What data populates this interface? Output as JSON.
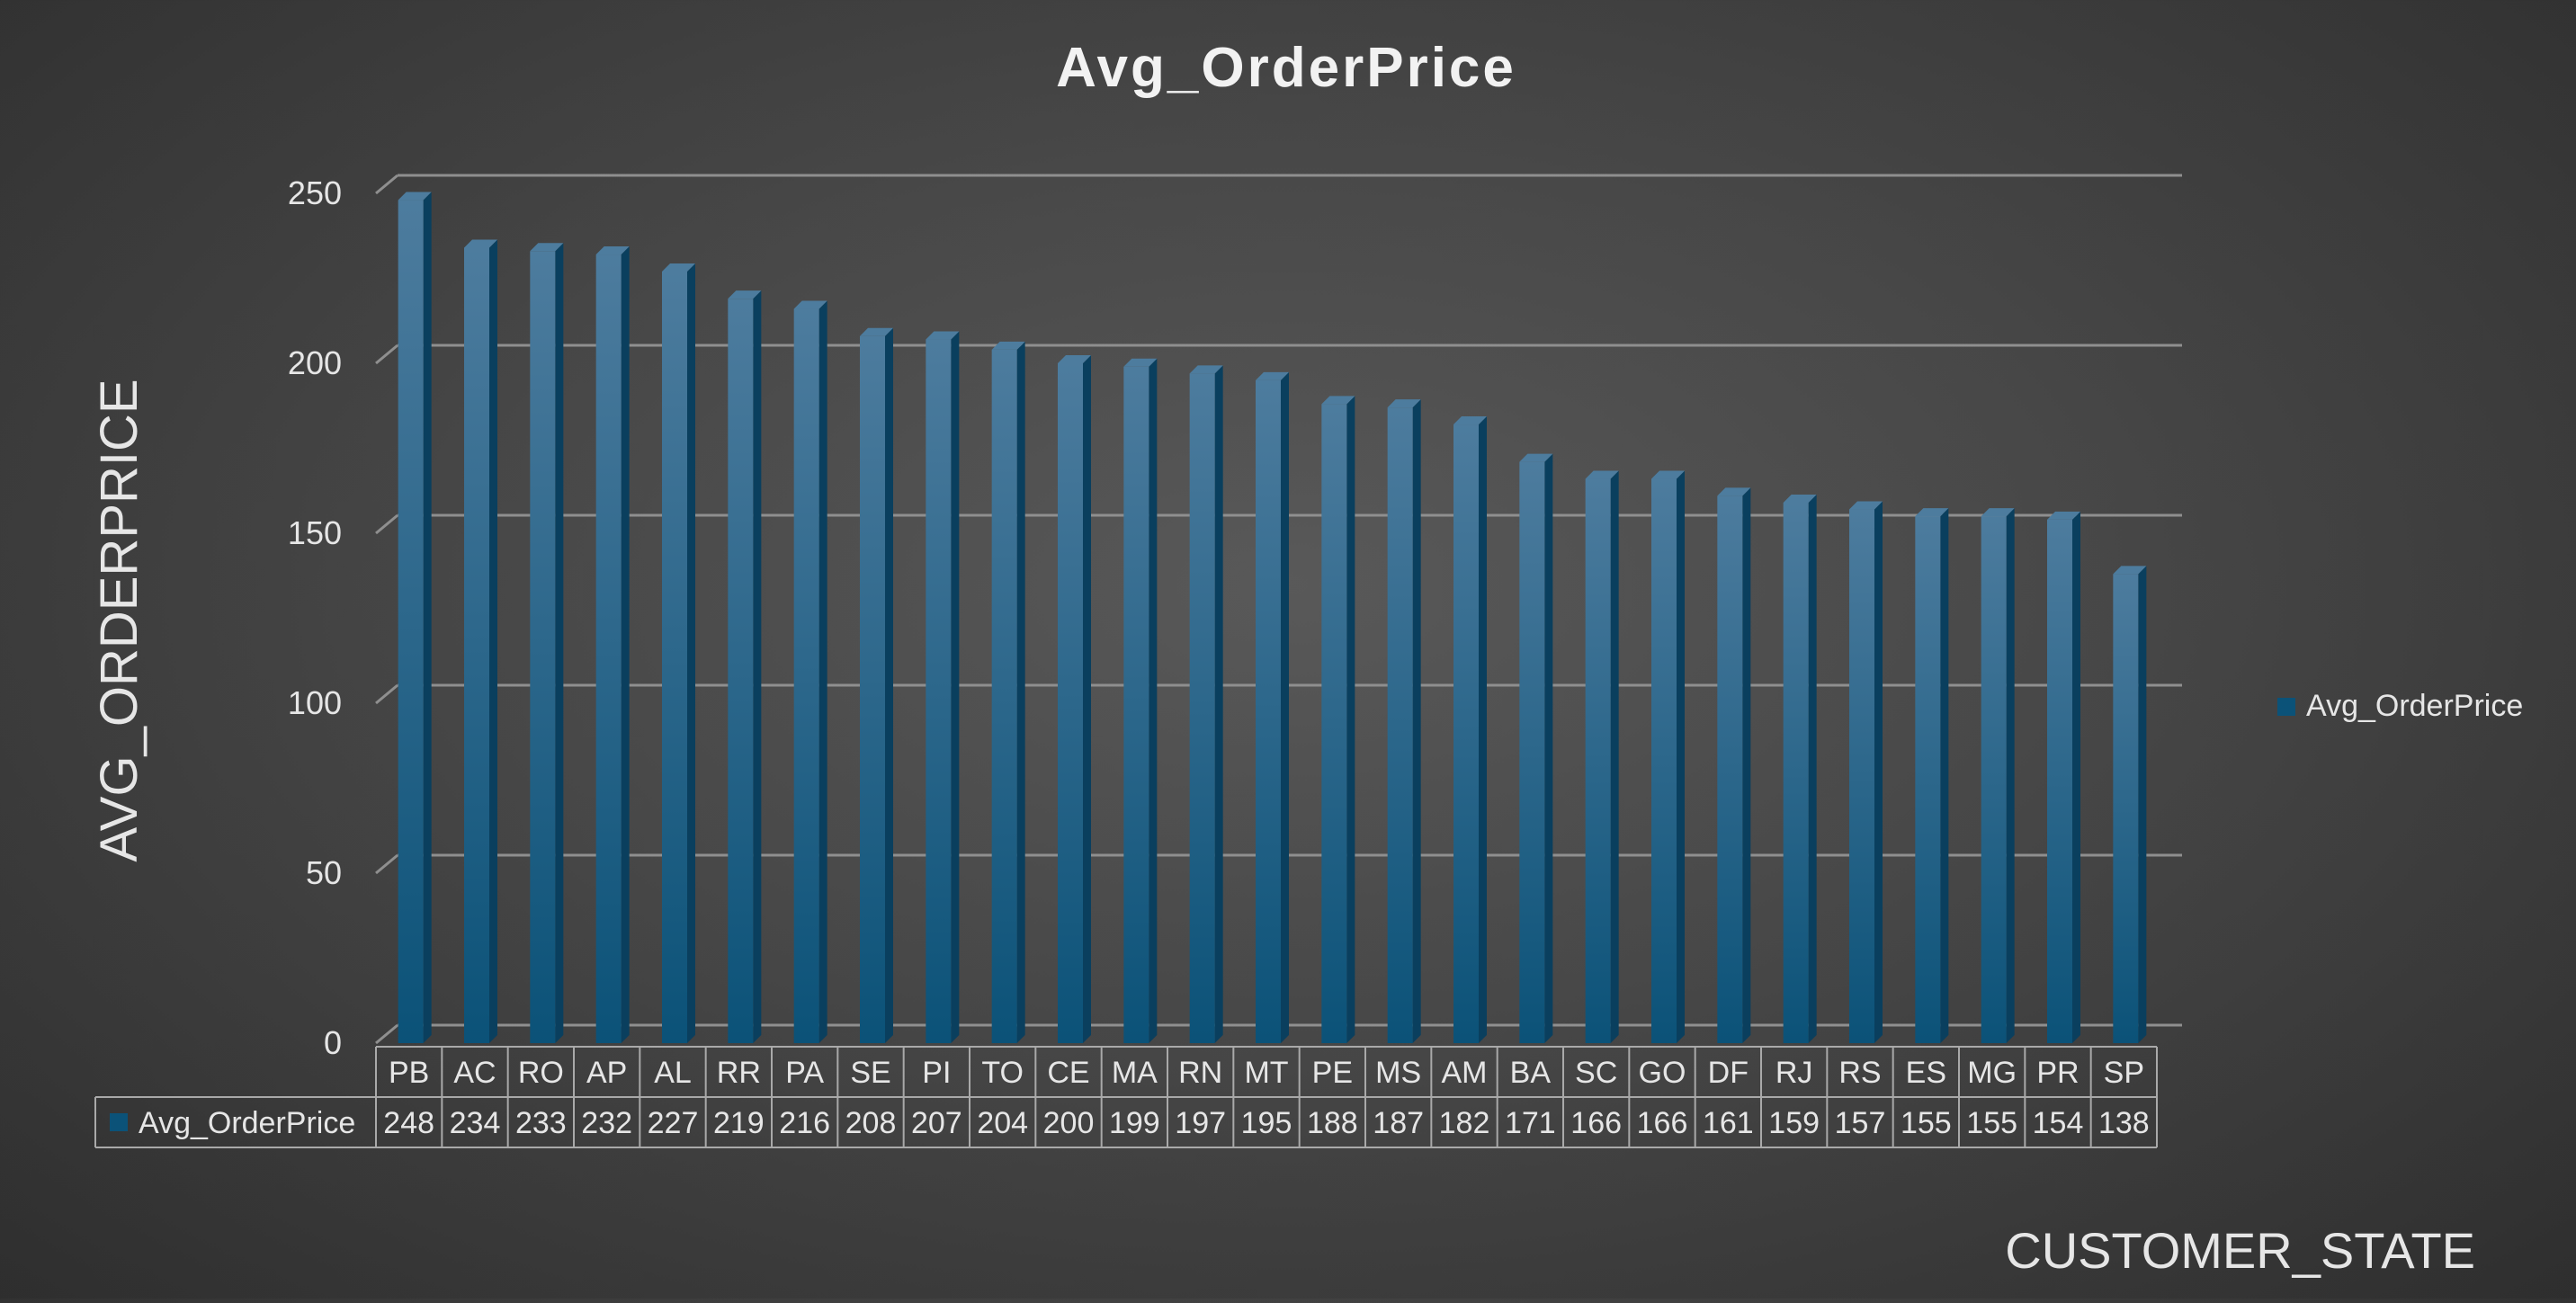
{
  "chart_data": {
    "type": "bar",
    "title": "Avg_OrderPrice",
    "xlabel": "CUSTOMER_STATE",
    "ylabel": "AVG_ORDERPRICE",
    "ylim": [
      0,
      250
    ],
    "yticks": [
      0,
      50,
      100,
      150,
      200,
      250
    ],
    "grid": true,
    "legend": "right",
    "data_table": true,
    "categories": [
      "PB",
      "AC",
      "RO",
      "AP",
      "AL",
      "RR",
      "PA",
      "SE",
      "PI",
      "TO",
      "CE",
      "MA",
      "RN",
      "MT",
      "PE",
      "MS",
      "AM",
      "BA",
      "SC",
      "GO",
      "DF",
      "RJ",
      "RS",
      "ES",
      "MG",
      "PR",
      "SP"
    ],
    "series": [
      {
        "name": "Avg_OrderPrice",
        "values": [
          248,
          234,
          233,
          232,
          227,
          219,
          216,
          208,
          207,
          204,
          200,
          199,
          197,
          195,
          188,
          187,
          182,
          171,
          166,
          166,
          161,
          159,
          157,
          155,
          155,
          154,
          138
        ]
      }
    ]
  },
  "colors": {
    "bar_top": "#4d7c9e",
    "bar_bottom": "#0b5278",
    "bar_side": "#0a3f5e",
    "grid": "#8f8f8f",
    "text": "#e6e6e6"
  }
}
